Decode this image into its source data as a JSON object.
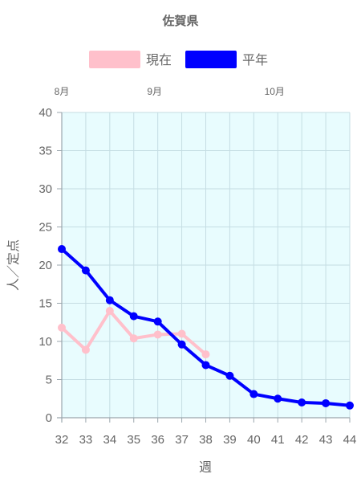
{
  "chart_data": {
    "type": "line",
    "title": "佐賀県",
    "xlabel": "週",
    "ylabel": "人／定点",
    "x": [
      32,
      33,
      34,
      35,
      36,
      37,
      38,
      39,
      40,
      41,
      42,
      43,
      44
    ],
    "xlim": [
      32,
      44
    ],
    "ylim": [
      0,
      40
    ],
    "yticks": [
      0,
      5,
      10,
      15,
      20,
      25,
      30,
      35,
      40
    ],
    "month_labels": [
      {
        "label": "8月",
        "x": 32
      },
      {
        "label": "9月",
        "x": 36
      },
      {
        "label": "10月",
        "x": 41
      }
    ],
    "grid": true,
    "legend_position": "top",
    "plot_background": "#e8fcfe",
    "series": [
      {
        "name": "現在",
        "color": "#ffc0cb",
        "values": [
          11.8,
          8.9,
          14.0,
          10.4,
          10.9,
          11.0,
          8.3,
          null,
          null,
          null,
          null,
          null,
          null
        ]
      },
      {
        "name": "平年",
        "color": "#0000ff",
        "values": [
          22.1,
          19.3,
          15.4,
          13.3,
          12.6,
          9.6,
          6.9,
          5.5,
          3.1,
          2.5,
          2.0,
          1.9,
          1.6
        ]
      }
    ]
  }
}
